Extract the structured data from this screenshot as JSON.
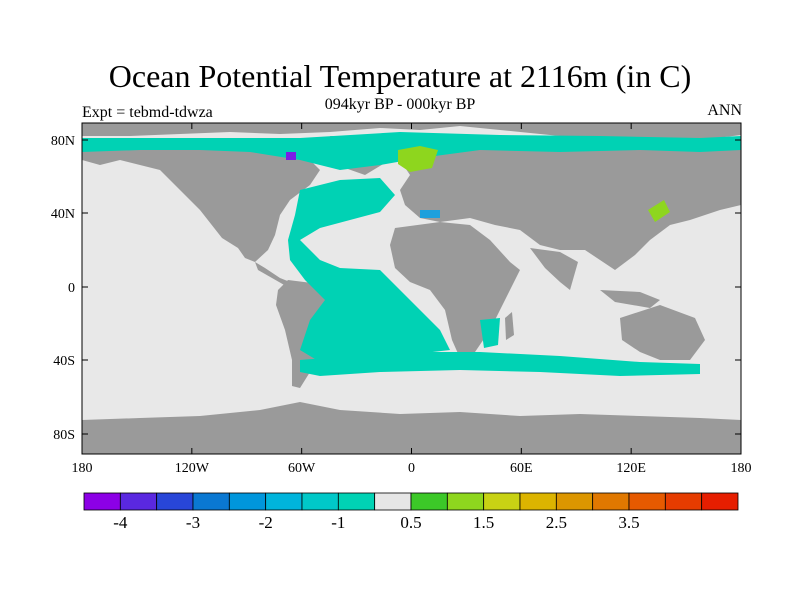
{
  "header": {
    "title": "Ocean Potential Temperature at 2116m (in C)",
    "subtitle": "094kyr BP - 000kyr BP",
    "left_label": "Expt = tebmd-tdwza",
    "right_label": "ANN"
  },
  "axes": {
    "lon_ticks": [
      "180",
      "120W",
      "60W",
      "0",
      "60E",
      "120E",
      "180"
    ],
    "lat_ticks": [
      "80N",
      "40N",
      "0",
      "40S",
      "80S"
    ]
  },
  "colors": {
    "land": "#9a9a9a",
    "no_change": "#e8e8e8",
    "cool_band": "#00d2b4",
    "warm_band": "#8ed61e",
    "strong_cool": "#7a1ee6",
    "mid_cool": "#1ea0dc"
  },
  "legend": {
    "colors": [
      "#8c00e6",
      "#5a28e0",
      "#2846d8",
      "#0a78d2",
      "#0096dc",
      "#00b4dc",
      "#00c8c8",
      "#00d2b4",
      "#e6e6e6",
      "#3cc828",
      "#8ed61e",
      "#c8d214",
      "#dcb400",
      "#dc9600",
      "#e07800",
      "#e65a00",
      "#e63c00",
      "#e61e00"
    ],
    "labels": [
      "-4",
      "-3",
      "-2",
      "-1",
      "0.5",
      "1.5",
      "2.5",
      "3.5"
    ]
  }
}
